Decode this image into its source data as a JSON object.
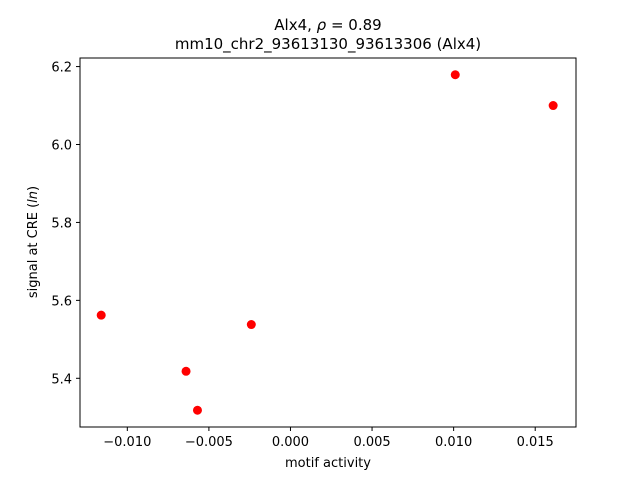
{
  "chart_data": {
    "type": "scatter",
    "title": "Alx4, ρ = 0.89",
    "subtitle": "mm10_chr2_93613130_93613306 (Alx4)",
    "xlabel": "motif activity",
    "ylabel": "signal at CRE (ln)",
    "xlim": [
      -0.0129,
      0.0175
    ],
    "ylim": [
      5.275,
      6.222
    ],
    "xticks": [
      -0.01,
      -0.005,
      0.0,
      0.005,
      0.01,
      0.015
    ],
    "xtick_labels": [
      "−0.010",
      "−0.005",
      "0.000",
      "0.005",
      "0.010",
      "0.015"
    ],
    "yticks": [
      5.4,
      5.6,
      5.8,
      6.0,
      6.2
    ],
    "ytick_labels": [
      "5.4",
      "5.6",
      "5.8",
      "6.0",
      "6.2"
    ],
    "grid": false,
    "marker_color": "#ff0000",
    "points": [
      {
        "x": -0.0116,
        "y": 5.562
      },
      {
        "x": -0.0064,
        "y": 5.418
      },
      {
        "x": -0.0057,
        "y": 5.318
      },
      {
        "x": -0.0024,
        "y": 5.538
      },
      {
        "x": 0.0101,
        "y": 6.179
      },
      {
        "x": 0.0161,
        "y": 6.1
      }
    ]
  }
}
